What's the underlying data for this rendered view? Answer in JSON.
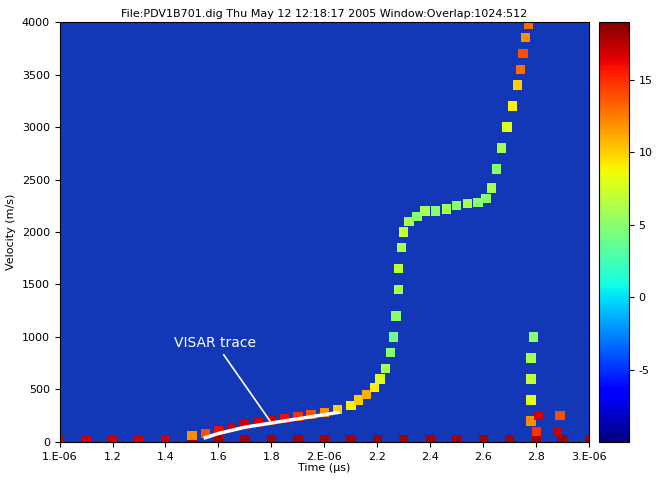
{
  "chart_data": {
    "type": "scatter",
    "title": "File:PDV1B701.dig Thu May 12 12:18:17 2005 Window:Overlap:1024:512",
    "x_label": "Time (µs)",
    "y_label": "Velocity (m/s)",
    "marker": "square",
    "x": [
      1e-06,
      1.1e-06,
      1.2e-06,
      1.3e-06,
      1.4e-06,
      1.5e-06,
      1.6e-06,
      1.7e-06,
      1.8e-06,
      1.9e-06,
      2e-06,
      2.1e-06,
      2.2e-06,
      2.3e-06,
      2.4e-06,
      2.5e-06,
      2.6e-06,
      2.7e-06,
      2.8e-06,
      2.9e-06,
      3e-06,
      1.5e-06,
      1.55e-06,
      1.6e-06,
      1.65e-06,
      1.7e-06,
      1.75e-06,
      1.8e-06,
      1.85e-06,
      1.9e-06,
      1.95e-06,
      2e-06,
      2.05e-06,
      2.1e-06,
      2.13e-06,
      2.16e-06,
      2.19e-06,
      2.21e-06,
      2.23e-06,
      2.25e-06,
      2.26e-06,
      2.27e-06,
      2.28e-06,
      2.28e-06,
      2.29e-06,
      2.3e-06,
      2.32e-06,
      2.35e-06,
      2.38e-06,
      2.42e-06,
      2.46e-06,
      2.5e-06,
      2.54e-06,
      2.58e-06,
      2.61e-06,
      2.63e-06,
      2.65e-06,
      2.67e-06,
      2.69e-06,
      2.71e-06,
      2.73e-06,
      2.74e-06,
      2.75e-06,
      2.76e-06,
      2.77e-06,
      2.78e-06,
      2.78e-06,
      2.78e-06,
      2.78e-06,
      2.79e-06,
      2.8e-06,
      2.81e-06,
      2.88e-06,
      2.89e-06
    ],
    "values": [
      25,
      25,
      25,
      25,
      25,
      25,
      25,
      25,
      25,
      25,
      25,
      25,
      25,
      25,
      25,
      25,
      25,
      25,
      25,
      25,
      25,
      60,
      80,
      110,
      140,
      160,
      180,
      200,
      220,
      240,
      260,
      280,
      310,
      350,
      400,
      450,
      520,
      600,
      700,
      850,
      1000,
      1200,
      1450,
      1650,
      1850,
      2000,
      2100,
      2150,
      2200,
      2200,
      2220,
      2250,
      2270,
      2280,
      2320,
      2420,
      2600,
      2800,
      3000,
      3200,
      3400,
      3550,
      3700,
      3850,
      3980,
      200,
      400,
      600,
      800,
      1000,
      100,
      250,
      100,
      250
    ],
    "intensity": [
      17,
      17,
      17,
      17,
      17,
      18,
      18,
      18,
      18,
      18,
      18,
      18,
      18,
      18,
      18,
      18,
      18,
      18,
      18,
      18,
      18,
      12,
      14,
      16,
      17,
      17,
      17,
      17,
      16,
      15,
      14,
      12,
      10,
      9,
      10,
      11,
      9,
      8,
      6,
      5,
      4,
      5,
      6,
      7,
      6,
      7,
      6,
      5,
      6,
      5,
      6,
      5,
      6,
      5,
      5,
      6,
      5,
      6,
      8,
      9,
      10,
      13,
      14,
      12,
      13,
      12,
      8,
      7,
      6,
      5,
      15,
      17,
      17,
      14
    ],
    "series": [
      {
        "name": "VISAR trace",
        "type": "line",
        "color": "#ffffff",
        "x": [
          1.55e-06,
          1.6e-06,
          1.7e-06,
          1.8e-06,
          1.9e-06,
          2e-06,
          2.05e-06
        ],
        "values": [
          40,
          80,
          140,
          180,
          220,
          260,
          280
        ]
      }
    ],
    "xlim": [
      1e-06,
      3e-06
    ],
    "xticks": [
      {
        "value": 1e-06,
        "label": "1.E-06"
      },
      {
        "value": 1.2e-06,
        "label": "1.2"
      },
      {
        "value": 1.4e-06,
        "label": "1.4"
      },
      {
        "value": 1.6e-06,
        "label": "1.6"
      },
      {
        "value": 1.8e-06,
        "label": "1.8"
      },
      {
        "value": 2e-06,
        "label": "2.E-06"
      },
      {
        "value": 2.2e-06,
        "label": "2.2"
      },
      {
        "value": 2.4e-06,
        "label": "2.4"
      },
      {
        "value": 2.6e-06,
        "label": "2.6"
      },
      {
        "value": 2.8e-06,
        "label": "2.8"
      },
      {
        "value": 3e-06,
        "label": "3.E-06"
      }
    ],
    "ylim": [
      0,
      4000
    ],
    "yticks": [
      0,
      500,
      1000,
      1500,
      2000,
      2500,
      3000,
      3500,
      4000
    ],
    "colorbar": {
      "range": [
        -10,
        19
      ],
      "ticks": [
        -5,
        0,
        5,
        10,
        15
      ]
    }
  }
}
